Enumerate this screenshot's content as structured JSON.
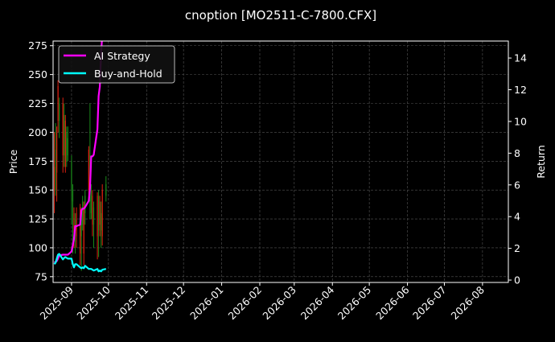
{
  "chart_data": {
    "type": "candlestick+line",
    "title": "cnoption [MO2511-C-7800.CFX]",
    "ylabel": "Price",
    "y2label": "Return",
    "ylim": [
      70,
      279
    ],
    "y2lim": [
      -0.15,
      15.07
    ],
    "xlim": [
      "2025-08-17",
      "2026-08-22"
    ],
    "yticks": [
      75,
      100,
      125,
      150,
      175,
      200,
      225,
      250,
      275
    ],
    "y2ticks": [
      0,
      2,
      4,
      6,
      8,
      10,
      12,
      14
    ],
    "xticks": [
      "2025-09",
      "2025-10",
      "2025-11",
      "2025-12",
      "2026-01",
      "2026-02",
      "2026-03",
      "2026-04",
      "2026-05",
      "2026-06",
      "2026-07",
      "2026-08"
    ],
    "grid": true,
    "legend_position": "top-left",
    "colors": {
      "background": "#000000",
      "up": "#1a8a1a",
      "down": "#e02010",
      "ai": "#ff00ff",
      "bh": "#00ffff",
      "grid": "#555555"
    },
    "candles": [
      {
        "date": "2025-08-18",
        "o": 170,
        "h": 200,
        "l": 130,
        "c": 150
      },
      {
        "date": "2025-08-19",
        "o": 150,
        "h": 208,
        "l": 145,
        "c": 185
      },
      {
        "date": "2025-08-20",
        "o": 200,
        "h": 205,
        "l": 140,
        "c": 165
      },
      {
        "date": "2025-08-21",
        "o": 240,
        "h": 245,
        "l": 200,
        "c": 210
      },
      {
        "date": "2025-08-22",
        "o": 210,
        "h": 230,
        "l": 195,
        "c": 225
      },
      {
        "date": "2025-08-25",
        "o": 225,
        "h": 230,
        "l": 165,
        "c": 180
      },
      {
        "date": "2025-08-26",
        "o": 180,
        "h": 225,
        "l": 170,
        "c": 215
      },
      {
        "date": "2025-08-27",
        "o": 210,
        "h": 215,
        "l": 165,
        "c": 170
      },
      {
        "date": "2025-08-28",
        "o": 175,
        "h": 205,
        "l": 170,
        "c": 200
      },
      {
        "date": "2025-08-29",
        "o": 180,
        "h": 205,
        "l": 175,
        "c": 195
      },
      {
        "date": "2025-09-01",
        "o": 150,
        "h": 180,
        "l": 120,
        "c": 175
      },
      {
        "date": "2025-09-02",
        "o": 140,
        "h": 155,
        "l": 95,
        "c": 150
      },
      {
        "date": "2025-09-03",
        "o": 130,
        "h": 135,
        "l": 100,
        "c": 105
      },
      {
        "date": "2025-09-04",
        "o": 105,
        "h": 130,
        "l": 95,
        "c": 125
      },
      {
        "date": "2025-09-05",
        "o": 130,
        "h": 135,
        "l": 100,
        "c": 110
      },
      {
        "date": "2025-09-08",
        "o": 135,
        "h": 138,
        "l": 85,
        "c": 95
      },
      {
        "date": "2025-09-09",
        "o": 110,
        "h": 135,
        "l": 80,
        "c": 130
      },
      {
        "date": "2025-09-10",
        "o": 120,
        "h": 145,
        "l": 115,
        "c": 140
      },
      {
        "date": "2025-09-11",
        "o": 135,
        "h": 140,
        "l": 85,
        "c": 95
      },
      {
        "date": "2025-09-12",
        "o": 130,
        "h": 150,
        "l": 120,
        "c": 145
      },
      {
        "date": "2025-09-15",
        "o": 185,
        "h": 188,
        "l": 140,
        "c": 150
      },
      {
        "date": "2025-09-16",
        "o": 140,
        "h": 225,
        "l": 125,
        "c": 180
      },
      {
        "date": "2025-09-17",
        "o": 130,
        "h": 155,
        "l": 125,
        "c": 150
      },
      {
        "date": "2025-09-18",
        "o": 145,
        "h": 150,
        "l": 110,
        "c": 120
      },
      {
        "date": "2025-09-19",
        "o": 120,
        "h": 140,
        "l": 100,
        "c": 135
      },
      {
        "date": "2025-09-22",
        "o": 145,
        "h": 148,
        "l": 90,
        "c": 110
      },
      {
        "date": "2025-09-23",
        "o": 115,
        "h": 150,
        "l": 92,
        "c": 145
      },
      {
        "date": "2025-09-24",
        "o": 140,
        "h": 145,
        "l": 110,
        "c": 120
      },
      {
        "date": "2025-09-25",
        "o": 115,
        "h": 140,
        "l": 100,
        "c": 130
      },
      {
        "date": "2025-09-26",
        "o": 150,
        "h": 155,
        "l": 102,
        "c": 110
      },
      {
        "date": "2025-09-29",
        "o": 145,
        "h": 162,
        "l": 140,
        "c": 155
      }
    ],
    "series": [
      {
        "name": "AI Strategy",
        "values": [
          1.1,
          1.15,
          1.2,
          1.35,
          1.55,
          1.6,
          1.6,
          1.6,
          1.6,
          1.6,
          1.8,
          2.2,
          2.6,
          3.4,
          3.4,
          3.5,
          4.4,
          4.5,
          4.5,
          4.6,
          5.0,
          5.8,
          7.8,
          7.8,
          7.9,
          9.5,
          11.6,
          12.2,
          14.3,
          15.5,
          15.8
        ]
      },
      {
        "name": "Buy-and-Hold",
        "values": [
          1.0,
          1.1,
          1.35,
          1.6,
          1.65,
          1.3,
          1.4,
          1.45,
          1.4,
          1.35,
          1.35,
          1.0,
          0.8,
          1.0,
          1.0,
          0.8,
          0.75,
          0.8,
          0.75,
          0.9,
          0.7,
          0.7,
          0.7,
          0.65,
          0.6,
          0.7,
          0.55,
          0.6,
          0.55,
          0.65,
          0.7
        ]
      }
    ]
  }
}
